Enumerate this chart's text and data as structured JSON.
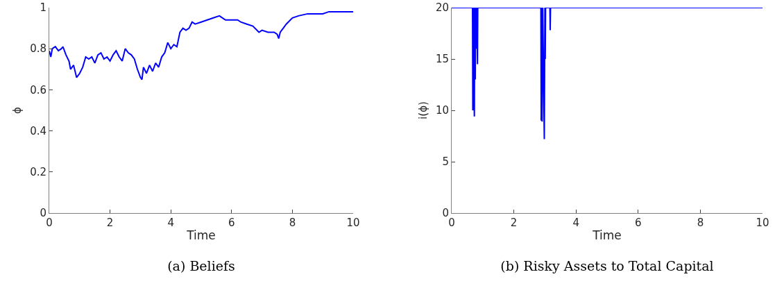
{
  "chart_data": [
    {
      "type": "line",
      "title": "(a) Beliefs",
      "xlabel": "Time",
      "ylabel": "ϕ",
      "xlim": [
        0,
        10
      ],
      "xticks": [
        0,
        2,
        4,
        6,
        8,
        10
      ],
      "ylim": [
        0,
        1
      ],
      "yticks": [
        0,
        0.2,
        0.4,
        0.6,
        0.8,
        1
      ],
      "marker": "none",
      "line_style": "solid",
      "series": [
        {
          "color": "#0000ff",
          "x": [
            0,
            0.05,
            0.1,
            0.2,
            0.3,
            0.4,
            0.45,
            0.55,
            0.65,
            0.7,
            0.8,
            0.9,
            1.0,
            1.1,
            1.2,
            1.3,
            1.4,
            1.5,
            1.6,
            1.7,
            1.8,
            1.9,
            2.0,
            2.1,
            2.2,
            2.3,
            2.4,
            2.5,
            2.6,
            2.7,
            2.8,
            2.9,
            3.0,
            3.05,
            3.1,
            3.2,
            3.3,
            3.4,
            3.5,
            3.6,
            3.7,
            3.8,
            3.9,
            4.0,
            4.1,
            4.2,
            4.3,
            4.4,
            4.5,
            4.6,
            4.7,
            4.8,
            5.0,
            5.2,
            5.4,
            5.6,
            5.7,
            5.8,
            6.0,
            6.2,
            6.3,
            6.5,
            6.7,
            6.9,
            7.0,
            7.2,
            7.4,
            7.5,
            7.55,
            7.6,
            7.7,
            7.8,
            8.0,
            8.2,
            8.5,
            8.8,
            9.0,
            9.2,
            9.5,
            9.8,
            10
          ],
          "values": [
            0.79,
            0.76,
            0.8,
            0.81,
            0.79,
            0.8,
            0.81,
            0.77,
            0.74,
            0.7,
            0.72,
            0.66,
            0.68,
            0.71,
            0.76,
            0.75,
            0.76,
            0.73,
            0.77,
            0.78,
            0.75,
            0.76,
            0.74,
            0.77,
            0.79,
            0.76,
            0.74,
            0.8,
            0.78,
            0.77,
            0.75,
            0.7,
            0.66,
            0.65,
            0.71,
            0.68,
            0.72,
            0.69,
            0.73,
            0.71,
            0.76,
            0.78,
            0.83,
            0.8,
            0.82,
            0.81,
            0.88,
            0.9,
            0.89,
            0.9,
            0.93,
            0.92,
            0.93,
            0.94,
            0.95,
            0.96,
            0.95,
            0.94,
            0.94,
            0.94,
            0.93,
            0.92,
            0.91,
            0.88,
            0.89,
            0.88,
            0.88,
            0.87,
            0.85,
            0.88,
            0.9,
            0.92,
            0.95,
            0.96,
            0.97,
            0.97,
            0.97,
            0.98,
            0.98,
            0.98,
            0.98
          ]
        }
      ]
    },
    {
      "type": "line",
      "title": "(b) Risky Assets to Total Capital",
      "xlabel": "Time",
      "ylabel": "i(ϕ)",
      "xlim": [
        0,
        10
      ],
      "xticks": [
        0,
        2,
        4,
        6,
        8,
        10
      ],
      "ylim": [
        0,
        20
      ],
      "yticks": [
        0,
        5,
        10,
        15,
        20
      ],
      "marker": "none",
      "line_style": "solid",
      "series": [
        {
          "color": "#0000ff",
          "x": [
            0,
            0.67,
            0.68,
            0.69,
            0.7,
            0.71,
            0.72,
            0.73,
            0.74,
            0.76,
            0.77,
            0.8,
            0.81,
            0.83,
            0.84,
            0.86,
            2.87,
            2.88,
            2.89,
            2.91,
            2.93,
            2.96,
            2.98,
            3.0,
            3.01,
            3.02,
            3.16,
            3.17,
            3.18,
            10
          ],
          "values": [
            20,
            20,
            10,
            20,
            16,
            20,
            11,
            9.4,
            20,
            13,
            20,
            16,
            20,
            14.5,
            20,
            20,
            20,
            9,
            20,
            8.9,
            20,
            12,
            7.2,
            20,
            15,
            20,
            20,
            17.8,
            20,
            20
          ]
        }
      ]
    }
  ]
}
